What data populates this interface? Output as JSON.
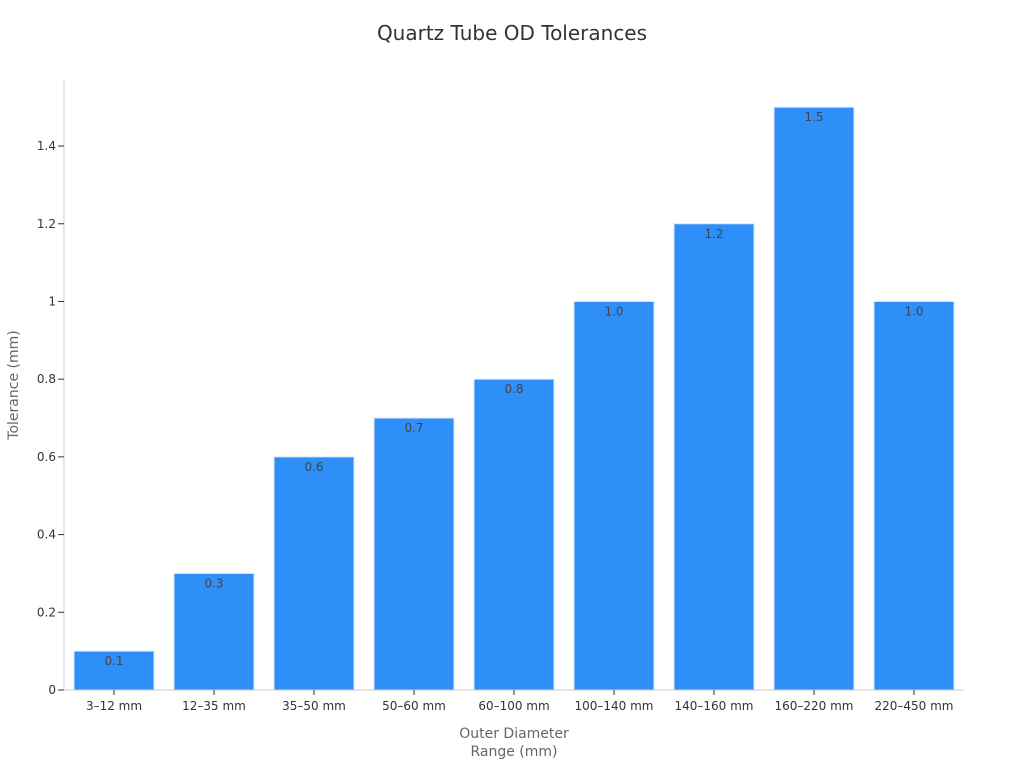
{
  "chart_data": {
    "type": "bar",
    "title": "Quartz Tube OD Tolerances",
    "xlabel": [
      "Outer Diameter",
      "Range (mm)"
    ],
    "ylabel": "Tolerance (mm)",
    "categories": [
      "3–12 mm",
      "12–35 mm",
      "35–50 mm",
      "50–60 mm",
      "60–100 mm",
      "100–140 mm",
      "140–160 mm",
      "160–220 mm",
      "220–450 mm"
    ],
    "values": [
      0.1,
      0.3,
      0.6,
      0.7,
      0.8,
      1.0,
      1.2,
      1.5,
      1.0
    ],
    "data_labels": [
      "0.1",
      "0.3",
      "0.6",
      "0.7",
      "0.8",
      "1.0",
      "1.2",
      "1.5",
      "1.0"
    ],
    "yticks": [
      0,
      0.2,
      0.4,
      0.6,
      0.8,
      1,
      1.2,
      1.4
    ],
    "ytick_labels": [
      "0",
      "0.2",
      "0.4",
      "0.6",
      "0.8",
      "1",
      "1.2",
      "1.4"
    ],
    "ylim": [
      0,
      1.57
    ],
    "grid": false,
    "bar_color": "#2f8ff8",
    "bar_border_color": "#d6e8fb"
  }
}
